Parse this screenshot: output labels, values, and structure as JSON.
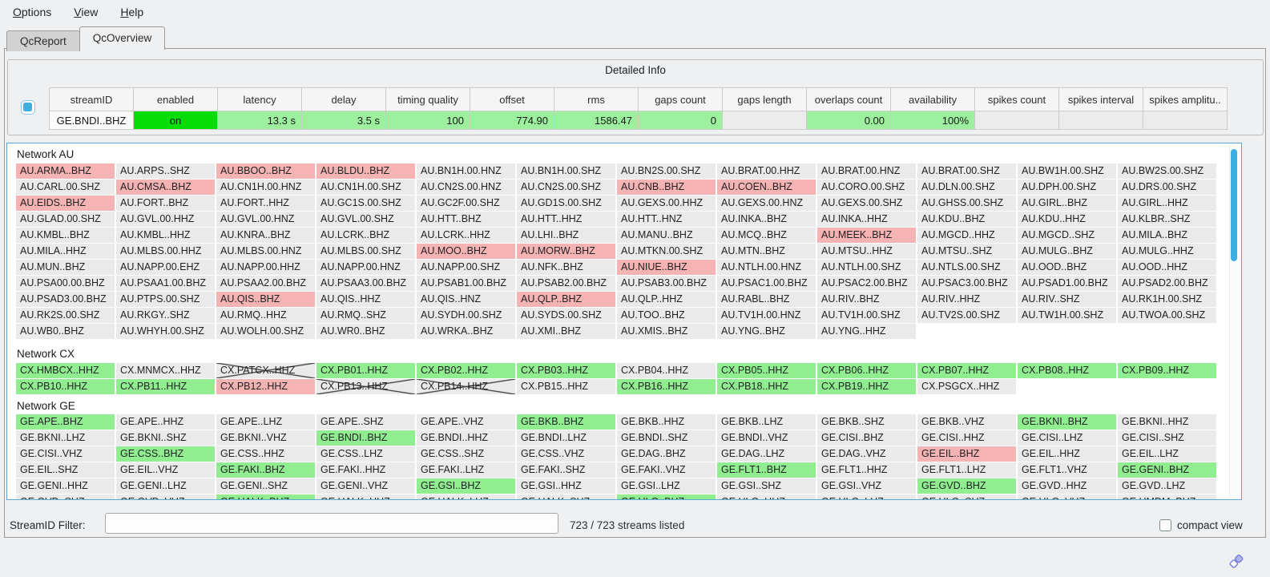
{
  "menu": {
    "items": [
      {
        "label": "Options"
      },
      {
        "label": "View"
      },
      {
        "label": "Help"
      }
    ]
  },
  "tabs": [
    {
      "label": "QcReport",
      "active": false
    },
    {
      "label": "QcOverview",
      "active": true
    }
  ],
  "detailed_info": {
    "title": "Detailed Info",
    "columns": [
      "streamID",
      "enabled",
      "latency",
      "delay",
      "timing quality",
      "offset",
      "rms",
      "gaps count",
      "gaps length",
      "overlaps count",
      "availability",
      "spikes count",
      "spikes interval",
      "spikes amplitu.."
    ],
    "cells": [
      {
        "v": "GE.BNDI..BHZ",
        "s": "plain"
      },
      {
        "v": "on",
        "s": "on"
      },
      {
        "v": "13.3 s",
        "s": "good"
      },
      {
        "v": "3.5 s",
        "s": "good"
      },
      {
        "v": "100",
        "s": "good"
      },
      {
        "v": "774.90",
        "s": "good"
      },
      {
        "v": "1586.47",
        "s": "good"
      },
      {
        "v": "0",
        "s": "good"
      },
      {
        "v": "",
        "s": "na"
      },
      {
        "v": "0.00",
        "s": "good"
      },
      {
        "v": "100%",
        "s": "good"
      },
      {
        "v": "",
        "s": "na"
      },
      {
        "v": "",
        "s": "na"
      },
      {
        "v": "",
        "s": "na"
      }
    ]
  },
  "legend_colors": {
    "ok_green": "#90ee90",
    "warn_red": "#f5b3b3",
    "enabled_on_green": "#06dd06",
    "detail_ok_green": "#9df09d",
    "accent_blue": "#3daee2"
  },
  "networks": [
    {
      "name": "Network AU",
      "streams": [
        [
          "AU.ARMA..BHZ",
          "r"
        ],
        [
          "AU.ARPS..SHZ",
          "n"
        ],
        [
          "AU.BBOO..BHZ",
          "r"
        ],
        [
          "AU.BLDU..BHZ",
          "r"
        ],
        [
          "AU.BN1H.00.HNZ",
          "n"
        ],
        [
          "AU.BN1H.00.SHZ",
          "n"
        ],
        [
          "AU.BN2S.00.SHZ",
          "n"
        ],
        [
          "AU.BRAT.00.HHZ",
          "n"
        ],
        [
          "AU.BRAT.00.HNZ",
          "n"
        ],
        [
          "AU.BRAT.00.SHZ",
          "n"
        ],
        [
          "AU.BW1H.00.SHZ",
          "n"
        ],
        [
          "AU.BW2S.00.SHZ",
          "n"
        ],
        [
          "AU.CARL.00.SHZ",
          "n"
        ],
        [
          "AU.CMSA..BHZ",
          "r"
        ],
        [
          "AU.CN1H.00.HNZ",
          "n"
        ],
        [
          "AU.CN1H.00.SHZ",
          "n"
        ],
        [
          "AU.CN2S.00.HNZ",
          "n"
        ],
        [
          "AU.CN2S.00.SHZ",
          "n"
        ],
        [
          "AU.CNB..BHZ",
          "r"
        ],
        [
          "AU.COEN..BHZ",
          "r"
        ],
        [
          "AU.CORO.00.SHZ",
          "n"
        ],
        [
          "AU.DLN.00.SHZ",
          "n"
        ],
        [
          "AU.DPH.00.SHZ",
          "n"
        ],
        [
          "AU.DRS.00.SHZ",
          "n"
        ],
        [
          "AU.EIDS..BHZ",
          "r"
        ],
        [
          "AU.FORT..BHZ",
          "n"
        ],
        [
          "AU.FORT..HHZ",
          "n"
        ],
        [
          "AU.GC1S.00.SHZ",
          "n"
        ],
        [
          "AU.GC2F.00.SHZ",
          "n"
        ],
        [
          "AU.GD1S.00.SHZ",
          "n"
        ],
        [
          "AU.GEXS.00.HHZ",
          "n"
        ],
        [
          "AU.GEXS.00.HNZ",
          "n"
        ],
        [
          "AU.GEXS.00.SHZ",
          "n"
        ],
        [
          "AU.GHSS.00.SHZ",
          "n"
        ],
        [
          "AU.GIRL..BHZ",
          "n"
        ],
        [
          "AU.GIRL..HHZ",
          "n"
        ],
        [
          "AU.GLAD.00.SHZ",
          "n"
        ],
        [
          "AU.GVL.00.HHZ",
          "n"
        ],
        [
          "AU.GVL.00.HNZ",
          "n"
        ],
        [
          "AU.GVL.00.SHZ",
          "n"
        ],
        [
          "AU.HTT..BHZ",
          "n"
        ],
        [
          "AU.HTT..HHZ",
          "n"
        ],
        [
          "AU.HTT..HNZ",
          "n"
        ],
        [
          "AU.INKA..BHZ",
          "n"
        ],
        [
          "AU.INKA..HHZ",
          "n"
        ],
        [
          "AU.KDU..BHZ",
          "n"
        ],
        [
          "AU.KDU..HHZ",
          "n"
        ],
        [
          "AU.KLBR..SHZ",
          "n"
        ],
        [
          "AU.KMBL..BHZ",
          "n"
        ],
        [
          "AU.KMBL..HHZ",
          "n"
        ],
        [
          "AU.KNRA..BHZ",
          "n"
        ],
        [
          "AU.LCRK..BHZ",
          "n"
        ],
        [
          "AU.LCRK..HHZ",
          "n"
        ],
        [
          "AU.LHI..BHZ",
          "n"
        ],
        [
          "AU.MANU..BHZ",
          "n"
        ],
        [
          "AU.MCQ..BHZ",
          "n"
        ],
        [
          "AU.MEEK..BHZ",
          "r"
        ],
        [
          "AU.MGCD..HHZ",
          "n"
        ],
        [
          "AU.MGCD..SHZ",
          "n"
        ],
        [
          "AU.MILA..BHZ",
          "n"
        ],
        [
          "AU.MILA..HHZ",
          "n"
        ],
        [
          "AU.MLBS.00.HHZ",
          "n"
        ],
        [
          "AU.MLBS.00.HNZ",
          "n"
        ],
        [
          "AU.MLBS.00.SHZ",
          "n"
        ],
        [
          "AU.MOO..BHZ",
          "r"
        ],
        [
          "AU.MORW..BHZ",
          "r"
        ],
        [
          "AU.MTKN.00.SHZ",
          "n"
        ],
        [
          "AU.MTN..BHZ",
          "n"
        ],
        [
          "AU.MTSU..HHZ",
          "n"
        ],
        [
          "AU.MTSU..SHZ",
          "n"
        ],
        [
          "AU.MULG..BHZ",
          "n"
        ],
        [
          "AU.MULG..HHZ",
          "n"
        ],
        [
          "AU.MUN..BHZ",
          "n"
        ],
        [
          "AU.NAPP.00.EHZ",
          "n"
        ],
        [
          "AU.NAPP.00.HHZ",
          "n"
        ],
        [
          "AU.NAPP.00.HNZ",
          "n"
        ],
        [
          "AU.NAPP.00.SHZ",
          "n"
        ],
        [
          "AU.NFK..BHZ",
          "n"
        ],
        [
          "AU.NIUE..BHZ",
          "r"
        ],
        [
          "AU.NTLH.00.HNZ",
          "n"
        ],
        [
          "AU.NTLH.00.SHZ",
          "n"
        ],
        [
          "AU.NTLS.00.SHZ",
          "n"
        ],
        [
          "AU.OOD..BHZ",
          "n"
        ],
        [
          "AU.OOD..HHZ",
          "n"
        ],
        [
          "AU.PSA00.00.BHZ",
          "n"
        ],
        [
          "AU.PSAA1.00.BHZ",
          "n"
        ],
        [
          "AU.PSAA2.00.BHZ",
          "n"
        ],
        [
          "AU.PSAA3.00.BHZ",
          "n"
        ],
        [
          "AU.PSAB1.00.BHZ",
          "n"
        ],
        [
          "AU.PSAB2.00.BHZ",
          "n"
        ],
        [
          "AU.PSAB3.00.BHZ",
          "n"
        ],
        [
          "AU.PSAC1.00.BHZ",
          "n"
        ],
        [
          "AU.PSAC2.00.BHZ",
          "n"
        ],
        [
          "AU.PSAC3.00.BHZ",
          "n"
        ],
        [
          "AU.PSAD1.00.BHZ",
          "n"
        ],
        [
          "AU.PSAD2.00.BHZ",
          "n"
        ],
        [
          "AU.PSAD3.00.BHZ",
          "n"
        ],
        [
          "AU.PTPS.00.SHZ",
          "n"
        ],
        [
          "AU.QIS..BHZ",
          "r"
        ],
        [
          "AU.QIS..HHZ",
          "n"
        ],
        [
          "AU.QIS..HNZ",
          "n"
        ],
        [
          "AU.QLP..BHZ",
          "r"
        ],
        [
          "AU.QLP..HHZ",
          "n"
        ],
        [
          "AU.RABL..BHZ",
          "n"
        ],
        [
          "AU.RIV..BHZ",
          "n"
        ],
        [
          "AU.RIV..HHZ",
          "n"
        ],
        [
          "AU.RIV..SHZ",
          "n"
        ],
        [
          "AU.RK1H.00.SHZ",
          "n"
        ],
        [
          "AU.RK2S.00.SHZ",
          "n"
        ],
        [
          "AU.RKGY..SHZ",
          "n"
        ],
        [
          "AU.RMQ..HHZ",
          "n"
        ],
        [
          "AU.RMQ..SHZ",
          "n"
        ],
        [
          "AU.SYDH.00.SHZ",
          "n"
        ],
        [
          "AU.SYDS.00.SHZ",
          "n"
        ],
        [
          "AU.TOO..BHZ",
          "n"
        ],
        [
          "AU.TV1H.00.HNZ",
          "n"
        ],
        [
          "AU.TV1H.00.SHZ",
          "n"
        ],
        [
          "AU.TV2S.00.SHZ",
          "n"
        ],
        [
          "AU.TW1H.00.SHZ",
          "n"
        ],
        [
          "AU.TWOA.00.SHZ",
          "n"
        ],
        [
          "AU.WB0..BHZ",
          "n"
        ],
        [
          "AU.WHYH.00.SHZ",
          "n"
        ],
        [
          "AU.WOLH.00.SHZ",
          "n"
        ],
        [
          "AU.WR0..BHZ",
          "n"
        ],
        [
          "AU.WRKA..BHZ",
          "n"
        ],
        [
          "AU.XMI..BHZ",
          "n"
        ],
        [
          "AU.XMIS..BHZ",
          "n"
        ],
        [
          "AU.YNG..BHZ",
          "n"
        ],
        [
          "AU.YNG..HHZ",
          "n"
        ]
      ]
    },
    {
      "name": "Network CX",
      "streams": [
        [
          "CX.HMBCX..HHZ",
          "g"
        ],
        [
          "CX.MNMCX..HHZ",
          "n"
        ],
        [
          "CX.PATCX..HHZ",
          "x"
        ],
        [
          "CX.PB01..HHZ",
          "g"
        ],
        [
          "CX.PB02..HHZ",
          "g"
        ],
        [
          "CX.PB03..HHZ",
          "g"
        ],
        [
          "CX.PB04..HHZ",
          "n"
        ],
        [
          "CX.PB05..HHZ",
          "g"
        ],
        [
          "CX.PB06..HHZ",
          "g"
        ],
        [
          "CX.PB07..HHZ",
          "g"
        ],
        [
          "CX.PB08..HHZ",
          "g"
        ],
        [
          "CX.PB09..HHZ",
          "g"
        ],
        [
          "CX.PB10..HHZ",
          "g"
        ],
        [
          "CX.PB11..HHZ",
          "g"
        ],
        [
          "CX.PB12..HHZ",
          "r"
        ],
        [
          "CX.PB13..HHZ",
          "x"
        ],
        [
          "CX.PB14..HHZ",
          "x"
        ],
        [
          "CX.PB15..HHZ",
          "n"
        ],
        [
          "CX.PB16..HHZ",
          "g"
        ],
        [
          "CX.PB18..HHZ",
          "g"
        ],
        [
          "CX.PB19..HHZ",
          "g"
        ],
        [
          "CX.PSGCX..HHZ",
          "n"
        ]
      ]
    },
    {
      "name": "Network GE",
      "streams": [
        [
          "GE.APE..BHZ",
          "g"
        ],
        [
          "GE.APE..HHZ",
          "n"
        ],
        [
          "GE.APE..LHZ",
          "n"
        ],
        [
          "GE.APE..SHZ",
          "n"
        ],
        [
          "GE.APE..VHZ",
          "n"
        ],
        [
          "GE.BKB..BHZ",
          "g"
        ],
        [
          "GE.BKB..HHZ",
          "n"
        ],
        [
          "GE.BKB..LHZ",
          "n"
        ],
        [
          "GE.BKB..SHZ",
          "n"
        ],
        [
          "GE.BKB..VHZ",
          "n"
        ],
        [
          "GE.BKNI..BHZ",
          "g"
        ],
        [
          "GE.BKNI..HHZ",
          "n"
        ],
        [
          "GE.BKNI..LHZ",
          "n"
        ],
        [
          "GE.BKNI..SHZ",
          "n"
        ],
        [
          "GE.BKNI..VHZ",
          "n"
        ],
        [
          "GE.BNDI..BHZ",
          "g"
        ],
        [
          "GE.BNDI..HHZ",
          "n"
        ],
        [
          "GE.BNDI..LHZ",
          "n"
        ],
        [
          "GE.BNDI..SHZ",
          "n"
        ],
        [
          "GE.BNDI..VHZ",
          "n"
        ],
        [
          "GE.CISI..BHZ",
          "n"
        ],
        [
          "GE.CISI..HHZ",
          "n"
        ],
        [
          "GE.CISI..LHZ",
          "n"
        ],
        [
          "GE.CISI..SHZ",
          "n"
        ],
        [
          "GE.CISI..VHZ",
          "n"
        ],
        [
          "GE.CSS..BHZ",
          "g"
        ],
        [
          "GE.CSS..HHZ",
          "n"
        ],
        [
          "GE.CSS..LHZ",
          "n"
        ],
        [
          "GE.CSS..SHZ",
          "n"
        ],
        [
          "GE.CSS..VHZ",
          "n"
        ],
        [
          "GE.DAG..BHZ",
          "n"
        ],
        [
          "GE.DAG..LHZ",
          "n"
        ],
        [
          "GE.DAG..VHZ",
          "n"
        ],
        [
          "GE.EIL..BHZ",
          "r"
        ],
        [
          "GE.EIL..HHZ",
          "n"
        ],
        [
          "GE.EIL..LHZ",
          "n"
        ],
        [
          "GE.EIL..SHZ",
          "n"
        ],
        [
          "GE.EIL..VHZ",
          "n"
        ],
        [
          "GE.FAKI..BHZ",
          "g"
        ],
        [
          "GE.FAKI..HHZ",
          "n"
        ],
        [
          "GE.FAKI..LHZ",
          "n"
        ],
        [
          "GE.FAKI..SHZ",
          "n"
        ],
        [
          "GE.FAKI..VHZ",
          "n"
        ],
        [
          "GE.FLT1..BHZ",
          "g"
        ],
        [
          "GE.FLT1..HHZ",
          "n"
        ],
        [
          "GE.FLT1..LHZ",
          "n"
        ],
        [
          "GE.FLT1..VHZ",
          "n"
        ],
        [
          "GE.GENI..BHZ",
          "g"
        ],
        [
          "GE.GENI..HHZ",
          "n"
        ],
        [
          "GE.GENI..LHZ",
          "n"
        ],
        [
          "GE.GENI..SHZ",
          "n"
        ],
        [
          "GE.GENI..VHZ",
          "n"
        ],
        [
          "GE.GSI..BHZ",
          "g"
        ],
        [
          "GE.GSI..HHZ",
          "n"
        ],
        [
          "GE.GSI..LHZ",
          "n"
        ],
        [
          "GE.GSI..SHZ",
          "n"
        ],
        [
          "GE.GSI..VHZ",
          "n"
        ],
        [
          "GE.GVD..BHZ",
          "g"
        ],
        [
          "GE.GVD..HHZ",
          "n"
        ],
        [
          "GE.GVD..LHZ",
          "n"
        ],
        [
          "GE.GVD..SHZ",
          "n"
        ],
        [
          "GE.GVD..VHZ",
          "n"
        ],
        [
          "GE.HALK..BHZ",
          "g"
        ],
        [
          "GE.HALK..HHZ",
          "n"
        ],
        [
          "GE.HALK..LHZ",
          "n"
        ],
        [
          "GE.HALK..SHZ",
          "n"
        ],
        [
          "GE.HLG..BHZ",
          "g"
        ],
        [
          "GE.HLG..HHZ",
          "n"
        ],
        [
          "GE.HLG..LHZ",
          "n"
        ],
        [
          "GE.HLG..SHZ",
          "n"
        ],
        [
          "GE.HLG..VHZ",
          "n"
        ],
        [
          "GE.HMDM..BHZ",
          "n"
        ]
      ]
    }
  ],
  "footer": {
    "filter_label": "StreamID Filter:",
    "filter_value": "",
    "status": "723 / 723 streams listed",
    "compact_label": "compact view",
    "compact_checked": false
  }
}
